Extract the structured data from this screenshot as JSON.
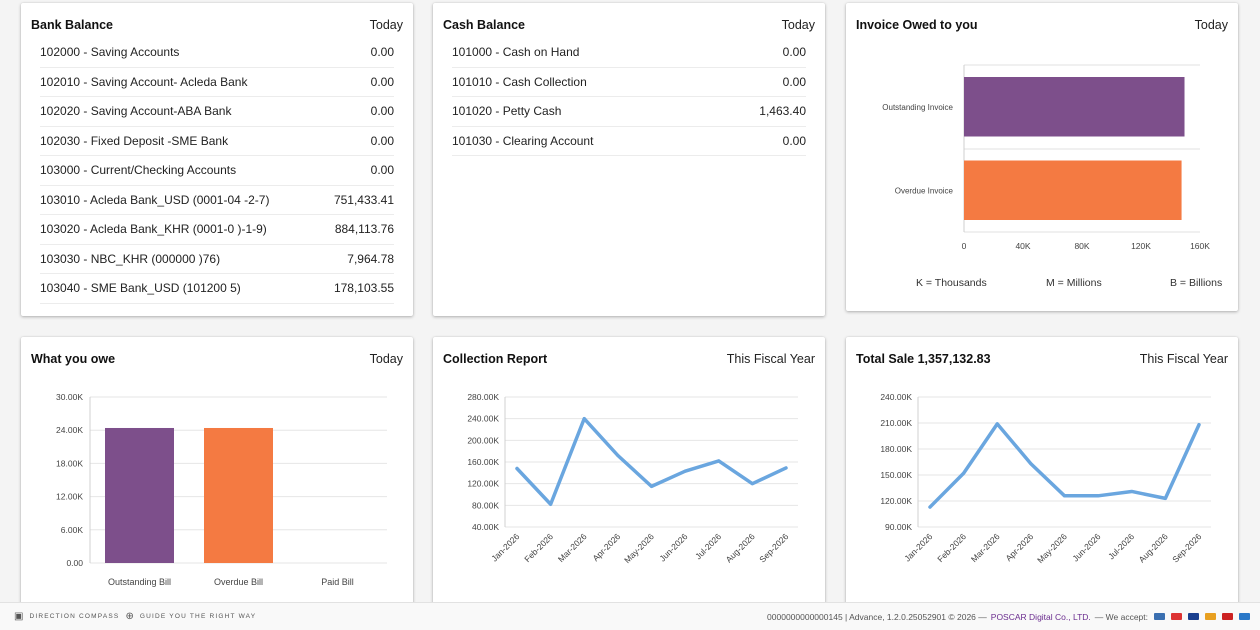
{
  "bank_balance": {
    "title": "Bank Balance",
    "period": "Today",
    "rows": [
      {
        "name": "102000 - Saving Accounts",
        "amount": "0.00"
      },
      {
        "name": "102010 - Saving Account- Acleda Bank",
        "amount": "0.00"
      },
      {
        "name": "102020 - Saving Account-ABA Bank",
        "amount": "0.00"
      },
      {
        "name": "102030 - Fixed Deposit -SME Bank",
        "amount": "0.00"
      },
      {
        "name": "103000 - Current/Checking Accounts",
        "amount": "0.00"
      },
      {
        "name": "103010 - Acleda Bank_USD (0001-04 -2-7)",
        "amount": "751,433.41"
      },
      {
        "name": "103020 - Acleda Bank_KHR (0001-0 )-1-9)",
        "amount": "884,113.76"
      },
      {
        "name": "103030 - NBC_KHR (000000 )76)",
        "amount": "7,964.78"
      },
      {
        "name": "103040 - SME Bank_USD (101200 5)",
        "amount": "178,103.55"
      }
    ]
  },
  "cash_balance": {
    "title": "Cash Balance",
    "period": "Today",
    "rows": [
      {
        "name": "101000 - Cash on Hand",
        "amount": "0.00"
      },
      {
        "name": "101010 - Cash Collection",
        "amount": "0.00"
      },
      {
        "name": "101020 - Petty Cash",
        "amount": "1,463.40"
      },
      {
        "name": "101030 - Clearing Account",
        "amount": "0.00"
      }
    ]
  },
  "invoice_owed": {
    "title": "Invoice Owed to you",
    "period": "Today",
    "units": {
      "k": "K = Thousands",
      "m": "M = Millions",
      "b": "B = Billions"
    }
  },
  "what_you_owe": {
    "title": "What you owe",
    "period": "Today"
  },
  "collection_report": {
    "title": "Collection Report",
    "period": "This Fiscal Year"
  },
  "total_sale": {
    "title": "Total Sale 1,357,132.83",
    "period": "This Fiscal Year"
  },
  "colors": {
    "purple": "#7d4f8b",
    "orange": "#f47a42",
    "line": "#6aa6df"
  },
  "chart_data": [
    {
      "id": "invoice",
      "type": "bar",
      "orientation": "horizontal",
      "categories": [
        "Outstanding Invoice",
        "Overdue Invoice"
      ],
      "values": [
        149500,
        147500
      ],
      "colors": [
        "#7d4f8b",
        "#f47a42"
      ],
      "xlim": [
        0,
        160000
      ],
      "ticks": [
        0,
        40000,
        80000,
        120000,
        160000
      ],
      "tick_labels": [
        "0",
        "40K",
        "80K",
        "120K",
        "160K"
      ]
    },
    {
      "id": "owe",
      "type": "bar",
      "categories": [
        "Outstanding Bill",
        "Overdue Bill",
        "Paid Bill"
      ],
      "values": [
        24400,
        24400,
        0
      ],
      "colors": [
        "#7d4f8b",
        "#f47a42",
        "#cccccc"
      ],
      "ylim": [
        0,
        30000
      ],
      "ticks": [
        0,
        6000,
        12000,
        18000,
        24000,
        30000
      ],
      "tick_labels": [
        "0.00",
        "6.00K",
        "12.00K",
        "18.00K",
        "24.00K",
        "30.00K"
      ]
    },
    {
      "id": "collection",
      "type": "line",
      "x": [
        "Jan-2026",
        "Feb-2026",
        "Mar-2026",
        "Apr-2026",
        "May-2026",
        "Jun-2026",
        "Jul-2026",
        "Aug-2026",
        "Sep-2026"
      ],
      "values": [
        148000,
        82000,
        240000,
        172000,
        115000,
        143000,
        162000,
        120000,
        149000
      ],
      "ylim": [
        40000,
        280000
      ],
      "ticks": [
        40000,
        80000,
        120000,
        160000,
        200000,
        240000,
        280000
      ],
      "tick_labels": [
        "40.00K",
        "80.00K",
        "120.00K",
        "160.00K",
        "200.00K",
        "240.00K",
        "280.00K"
      ]
    },
    {
      "id": "sale",
      "type": "line",
      "x": [
        "Jan-2026",
        "Feb-2026",
        "Mar-2026",
        "Apr-2026",
        "May-2026",
        "Jun-2026",
        "Jul-2026",
        "Aug-2026",
        "Sep-2026"
      ],
      "values": [
        113000,
        152000,
        209000,
        163000,
        126000,
        126000,
        131000,
        123000,
        208000
      ],
      "ylim": [
        90000,
        240000
      ],
      "ticks": [
        90000,
        120000,
        150000,
        180000,
        210000,
        240000
      ],
      "tick_labels": [
        "90.00K",
        "120.00K",
        "150.00K",
        "180.00K",
        "210.00K",
        "240.00K"
      ]
    }
  ],
  "footer": {
    "brand": "DIRECTION COMPASS",
    "tagline": "GUIDE YOU THE RIGHT WAY",
    "version": "0000000000000145 | Advance, 1.2.0.25052901 © 2026 —",
    "company": "POSCAR Digital Co., LTD.",
    "accept": "— We accept:"
  }
}
